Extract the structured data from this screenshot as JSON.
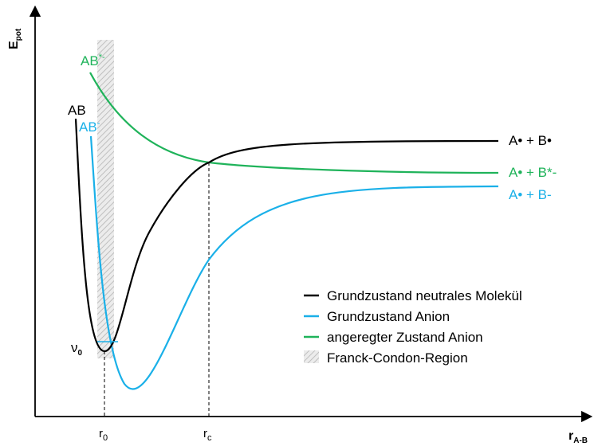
{
  "colors": {
    "neutral": "#000000",
    "anion": "#1ab0e8",
    "excited": "#1fb35a",
    "franck_condon": "#c8c8c8"
  },
  "axes": {
    "y_label_main": "E",
    "y_label_sub": "pot",
    "x_label_main": "r",
    "x_label_sub": "A-B",
    "x_ticks": [
      {
        "main": "r",
        "sub": "0"
      },
      {
        "main": "r",
        "sub": "c"
      }
    ]
  },
  "curves": {
    "neutral": {
      "left_label": "AB",
      "right_label": "A• + B•"
    },
    "anion": {
      "left_label_main": "AB",
      "left_label_sup": "-",
      "right_label": "A• + B-"
    },
    "excited": {
      "left_label_main": "AB",
      "left_label_sup": "*-",
      "right_label": "A• + B*-"
    }
  },
  "annotations": {
    "nu_main": "ν",
    "nu_sub": "0"
  },
  "legend": [
    {
      "label": "Grundzustand neutrales Molekül",
      "kind": "line",
      "color_key": "neutral"
    },
    {
      "label": "Grundzustand Anion",
      "kind": "line",
      "color_key": "anion"
    },
    {
      "label": "angeregter Zustand Anion",
      "kind": "line",
      "color_key": "excited"
    },
    {
      "label": "Franck-Condon-Region",
      "kind": "hatch",
      "color_key": "franck_condon"
    }
  ]
}
